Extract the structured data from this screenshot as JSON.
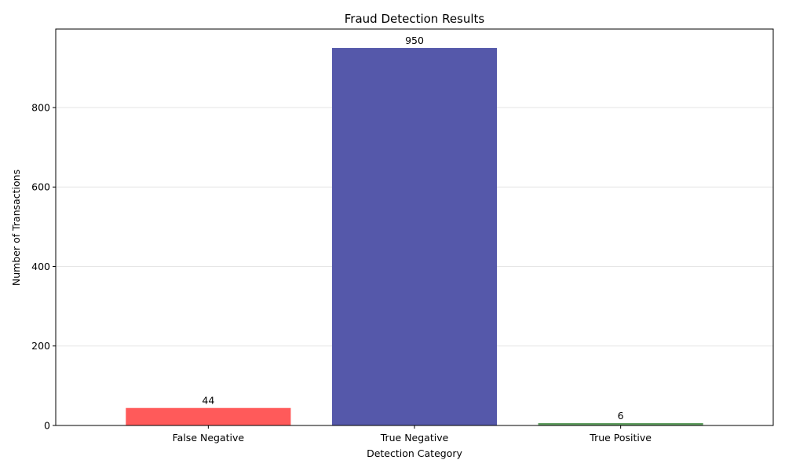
{
  "chart_data": {
    "type": "bar",
    "title": "Fraud Detection Results",
    "xlabel": "Detection Category",
    "ylabel": "Number of Transactions",
    "categories": [
      "False Negative",
      "True Negative",
      "True Positive"
    ],
    "values": [
      44,
      950,
      6
    ],
    "data_labels": [
      "44",
      "950",
      "6"
    ],
    "colors": [
      "#ff5a5a",
      "#5558aa",
      "#5f9e5f"
    ],
    "ylim": [
      0,
      997.5
    ],
    "yticks": [
      0,
      200,
      400,
      600,
      800
    ],
    "ytick_labels": [
      "0",
      "200",
      "400",
      "600",
      "800"
    ],
    "grid": true,
    "grid_axis": "y",
    "legend": false
  }
}
